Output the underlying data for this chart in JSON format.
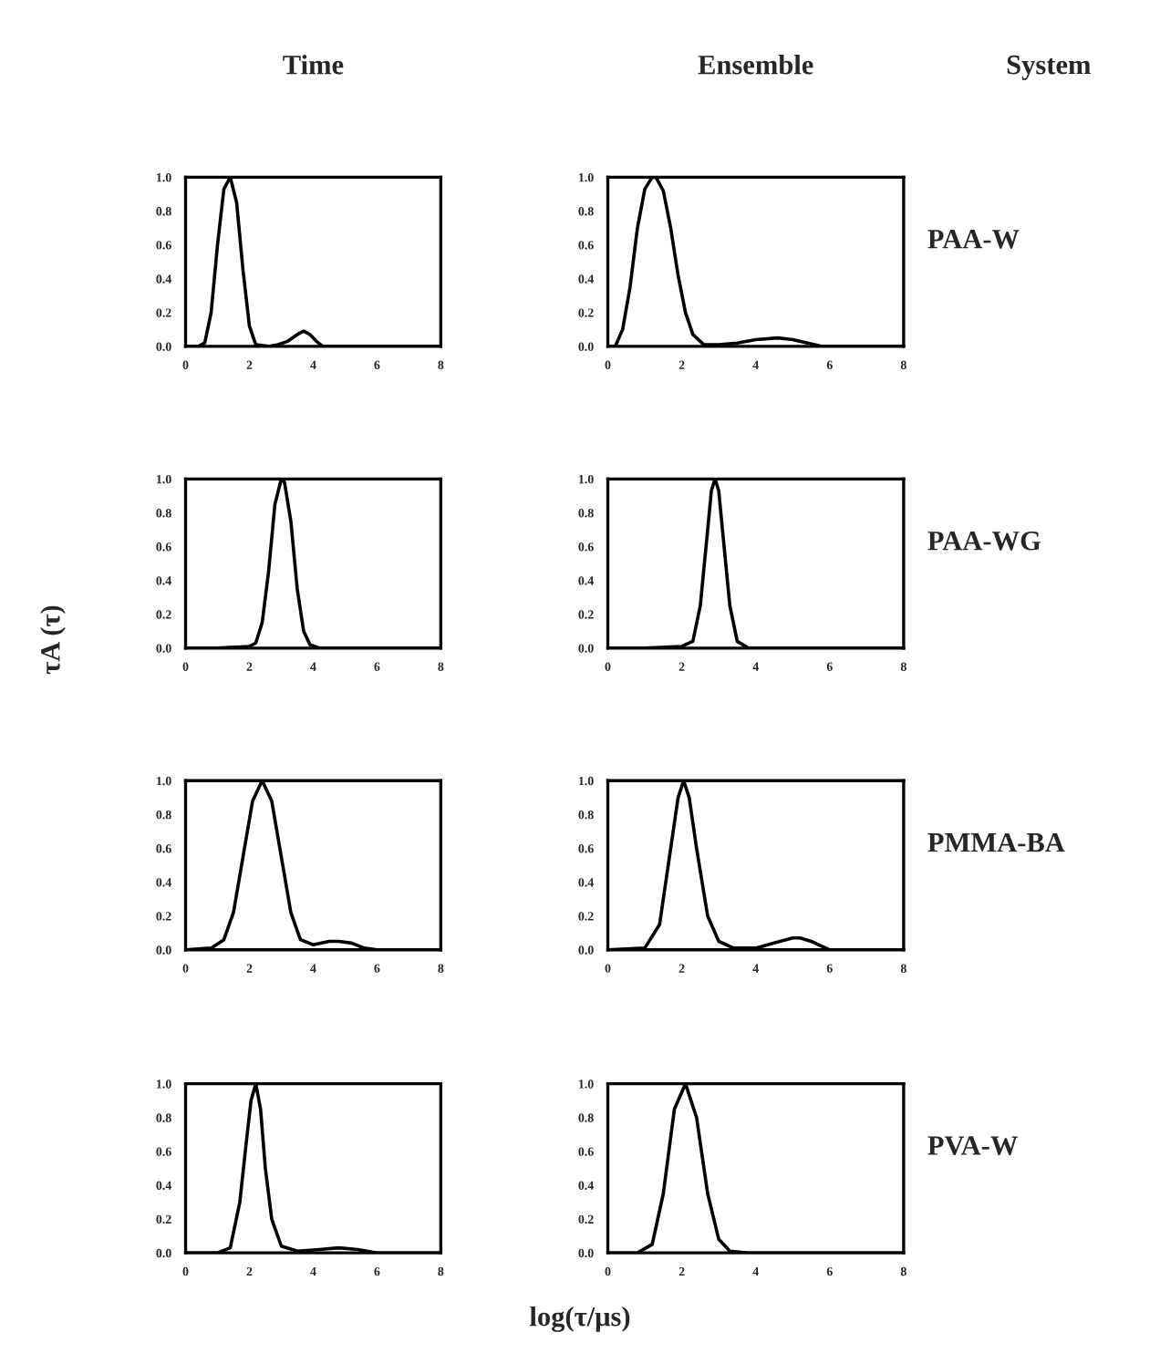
{
  "chart_data": [
    {
      "type": "line",
      "title": "Time",
      "x": [
        0,
        0.4,
        0.6,
        0.8,
        1.0,
        1.2,
        1.4,
        1.6,
        1.8,
        2.0,
        2.2,
        2.6,
        2.9,
        3.2,
        3.5,
        3.7,
        3.9,
        4.1,
        4.3,
        5,
        6,
        8
      ],
      "values": [
        0,
        0,
        0.02,
        0.2,
        0.6,
        0.93,
        1.0,
        0.85,
        0.45,
        0.12,
        0.01,
        0,
        0.01,
        0.03,
        0.07,
        0.09,
        0.07,
        0.03,
        0,
        0,
        0,
        0
      ],
      "color": "#000000",
      "xlim": [
        0,
        8
      ],
      "ylim": [
        0,
        1
      ],
      "xticks": [
        0,
        2,
        4,
        6,
        8
      ],
      "yticks": [
        {
          "value": 0,
          "label": "0.0"
        },
        {
          "value": 0.2,
          "label": "0.2"
        },
        {
          "value": 0.4,
          "label": "0.4"
        },
        {
          "value": 0.6,
          "label": "0.6"
        },
        {
          "value": 0.8,
          "label": "0.8"
        },
        {
          "value": 1,
          "label": "1.0"
        }
      ]
    },
    {
      "type": "line",
      "title": "Ensemble",
      "annotations": [
        "System",
        "PAA-W"
      ],
      "x": [
        0,
        0.2,
        0.4,
        0.6,
        0.8,
        1.0,
        1.2,
        1.3,
        1.5,
        1.7,
        1.9,
        2.1,
        2.3,
        2.6,
        3.0,
        3.5,
        4.0,
        4.6,
        5.0,
        5.4,
        5.8,
        6.5,
        8
      ],
      "values": [
        0,
        0,
        0.1,
        0.35,
        0.7,
        0.93,
        1.0,
        1.0,
        0.92,
        0.7,
        0.42,
        0.2,
        0.07,
        0.01,
        0.01,
        0.02,
        0.04,
        0.05,
        0.04,
        0.02,
        0,
        0,
        0
      ],
      "color": "#000000",
      "xlim": [
        0,
        8
      ],
      "ylim": [
        0,
        1
      ],
      "xticks": [
        0,
        2,
        4,
        6,
        8
      ],
      "yticks": [
        {
          "value": 0,
          "label": "0.0"
        },
        {
          "value": 0.2,
          "label": "0.2"
        },
        {
          "value": 0.4,
          "label": "0.4"
        },
        {
          "value": 0.6,
          "label": "0.6"
        },
        {
          "value": 0.8,
          "label": "0.8"
        },
        {
          "value": 1,
          "label": "1.0"
        }
      ]
    },
    {
      "type": "line",
      "ylabel": "τA (τ)",
      "x": [
        0,
        1,
        2,
        2.2,
        2.4,
        2.6,
        2.8,
        3.0,
        3.1,
        3.3,
        3.5,
        3.7,
        3.9,
        4.2,
        5,
        8
      ],
      "values": [
        0,
        0,
        0.01,
        0.03,
        0.15,
        0.45,
        0.85,
        1.0,
        0.98,
        0.75,
        0.35,
        0.1,
        0.02,
        0,
        0,
        0
      ],
      "color": "#000000",
      "xlim": [
        0,
        8
      ],
      "ylim": [
        0,
        1
      ],
      "xticks": [
        0,
        2,
        4,
        6,
        8
      ],
      "yticks": [
        {
          "value": 0,
          "label": "0.0"
        },
        {
          "value": 0.2,
          "label": "0.2"
        },
        {
          "value": 0.4,
          "label": "0.4"
        },
        {
          "value": 0.6,
          "label": "0.6"
        },
        {
          "value": 0.8,
          "label": "0.8"
        },
        {
          "value": 1,
          "label": "1.0"
        }
      ]
    },
    {
      "type": "line",
      "annotations": [
        "PAA-WG"
      ],
      "x": [
        0,
        1,
        2,
        2.3,
        2.5,
        2.7,
        2.8,
        2.9,
        3.0,
        3.1,
        3.3,
        3.5,
        3.8,
        5,
        8
      ],
      "values": [
        0,
        0,
        0.01,
        0.04,
        0.25,
        0.7,
        0.93,
        1.0,
        0.93,
        0.7,
        0.25,
        0.04,
        0,
        0,
        0
      ],
      "color": "#000000",
      "xlim": [
        0,
        8
      ],
      "ylim": [
        0,
        1
      ],
      "xticks": [
        0,
        2,
        4,
        6,
        8
      ],
      "yticks": [
        {
          "value": 0,
          "label": "0.0"
        },
        {
          "value": 0.2,
          "label": "0.2"
        },
        {
          "value": 0.4,
          "label": "0.4"
        },
        {
          "value": 0.6,
          "label": "0.6"
        },
        {
          "value": 0.8,
          "label": "0.8"
        },
        {
          "value": 1,
          "label": "1.0"
        }
      ]
    },
    {
      "type": "line",
      "x": [
        0,
        0.8,
        1.2,
        1.5,
        1.8,
        2.1,
        2.4,
        2.7,
        3.0,
        3.3,
        3.6,
        4.0,
        4.5,
        4.8,
        5.2,
        5.6,
        6,
        8
      ],
      "values": [
        0,
        0.01,
        0.06,
        0.22,
        0.55,
        0.88,
        1.0,
        0.88,
        0.55,
        0.22,
        0.06,
        0.03,
        0.05,
        0.05,
        0.04,
        0.01,
        0,
        0
      ],
      "color": "#000000",
      "xlim": [
        0,
        8
      ],
      "ylim": [
        0,
        1
      ],
      "xticks": [
        0,
        2,
        4,
        6,
        8
      ],
      "yticks": [
        {
          "value": 0,
          "label": "0.0"
        },
        {
          "value": 0.2,
          "label": "0.2"
        },
        {
          "value": 0.4,
          "label": "0.4"
        },
        {
          "value": 0.6,
          "label": "0.6"
        },
        {
          "value": 0.8,
          "label": "0.8"
        },
        {
          "value": 1,
          "label": "1.0"
        }
      ]
    },
    {
      "type": "line",
      "annotations": [
        "PMMA-BA"
      ],
      "x": [
        0,
        1,
        1.4,
        1.7,
        1.9,
        2.05,
        2.2,
        2.4,
        2.7,
        3.0,
        3.4,
        4.0,
        4.5,
        5.0,
        5.2,
        5.5,
        6,
        8
      ],
      "values": [
        0,
        0.01,
        0.15,
        0.6,
        0.9,
        1.0,
        0.9,
        0.6,
        0.2,
        0.05,
        0.01,
        0.01,
        0.04,
        0.07,
        0.07,
        0.05,
        0,
        0
      ],
      "color": "#000000",
      "xlim": [
        0,
        8
      ],
      "ylim": [
        0,
        1
      ],
      "xticks": [
        0,
        2,
        4,
        6,
        8
      ],
      "yticks": [
        {
          "value": 0,
          "label": "0.0"
        },
        {
          "value": 0.2,
          "label": "0.2"
        },
        {
          "value": 0.4,
          "label": "0.4"
        },
        {
          "value": 0.6,
          "label": "0.6"
        },
        {
          "value": 0.8,
          "label": "0.8"
        },
        {
          "value": 1,
          "label": "1.0"
        }
      ]
    },
    {
      "type": "line",
      "x": [
        0,
        1,
        1.4,
        1.7,
        1.9,
        2.05,
        2.2,
        2.35,
        2.5,
        2.7,
        3.0,
        3.5,
        4.2,
        4.8,
        5.4,
        6,
        8
      ],
      "values": [
        0,
        0,
        0.03,
        0.3,
        0.65,
        0.9,
        1.0,
        0.85,
        0.5,
        0.2,
        0.04,
        0.01,
        0.02,
        0.03,
        0.02,
        0,
        0
      ],
      "color": "#000000",
      "xlim": [
        0,
        8
      ],
      "ylim": [
        0,
        1
      ],
      "xticks": [
        0,
        2,
        4,
        6,
        8
      ],
      "yticks": [
        {
          "value": 0,
          "label": "0.0"
        },
        {
          "value": 0.2,
          "label": "0.2"
        },
        {
          "value": 0.4,
          "label": "0.4"
        },
        {
          "value": 0.6,
          "label": "0.6"
        },
        {
          "value": 0.8,
          "label": "0.8"
        },
        {
          "value": 1,
          "label": "1.0"
        }
      ]
    },
    {
      "type": "line",
      "xlabel": "log(τ/μs)",
      "annotations": [
        "PVA-W"
      ],
      "x": [
        0,
        0.8,
        1.2,
        1.5,
        1.8,
        2.1,
        2.4,
        2.7,
        3.0,
        3.3,
        3.8,
        5,
        8
      ],
      "values": [
        0,
        0,
        0.05,
        0.35,
        0.85,
        1.0,
        0.8,
        0.35,
        0.08,
        0.01,
        0,
        0,
        0
      ],
      "color": "#000000",
      "xlim": [
        0,
        8
      ],
      "ylim": [
        0,
        1
      ],
      "xticks": [
        0,
        2,
        4,
        6,
        8
      ],
      "yticks": [
        {
          "value": 0,
          "label": "0.0"
        },
        {
          "value": 0.2,
          "label": "0.2"
        },
        {
          "value": 0.4,
          "label": "0.4"
        },
        {
          "value": 0.6,
          "label": "0.6"
        },
        {
          "value": 0.8,
          "label": "0.8"
        },
        {
          "value": 1,
          "label": "1.0"
        }
      ]
    }
  ]
}
